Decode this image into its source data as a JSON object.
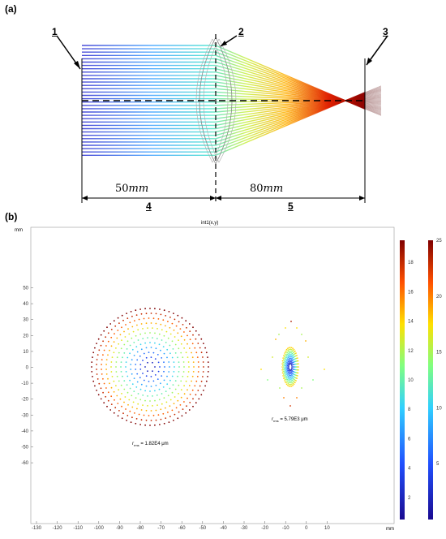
{
  "panel_a": {
    "label": "(a)",
    "markers": [
      "1",
      "2",
      "3"
    ],
    "dims": [
      {
        "number": "50",
        "unit": "mm",
        "label": "4"
      },
      {
        "number": "80",
        "unit": "mm",
        "label": "5"
      }
    ]
  },
  "panel_b": {
    "label": "(b)",
    "title": "int1(x,y)",
    "unit": "mm",
    "x_ticks": [
      "-130",
      "-120",
      "-110",
      "-100",
      "-90",
      "-80",
      "-70",
      "-60",
      "-50",
      "-40",
      "-30",
      "-20",
      "-10",
      "0",
      "10"
    ],
    "y_ticks": [
      "50",
      "40",
      "30",
      "20",
      "10",
      "0",
      "-10",
      "-20",
      "-30",
      "-40",
      "-50",
      "-60"
    ],
    "spots": [
      {
        "r_sub": "rms",
        "value": "= 1.82E4 μm"
      },
      {
        "r_sub": "rms",
        "value": "= 5.79E3 μm"
      }
    ],
    "colorbar1_ticks": [
      "18",
      "16",
      "14",
      "12",
      "10",
      "8",
      "6",
      "4",
      "2"
    ],
    "colorbar2_ticks": [
      "25",
      "20",
      "15",
      "10",
      "5"
    ]
  },
  "colors": {
    "ray_start": "#2222cc",
    "ray_end": "#aa0000",
    "lens": "#888888"
  }
}
